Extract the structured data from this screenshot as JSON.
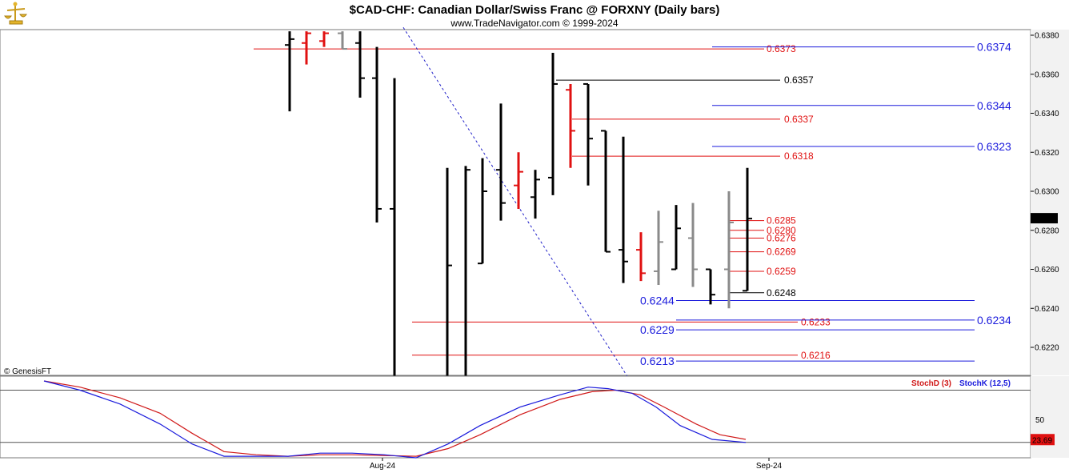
{
  "header": {
    "title": "$CAD-CHF:  Canadian Dollar/Swiss Franc @ FORXNY  (Daily bars)",
    "subtitle": "www.TradeNavigator.com © 1999-2024",
    "logo_icon": "gold-scale-logo-icon"
  },
  "watermark": "© GenesisFT",
  "chart_data": [
    {
      "type": "ohlc",
      "name": "price-panel",
      "ylim": [
        0.62045,
        0.63845
      ],
      "y_ticks": [
        "0.6380",
        "0.6360",
        "0.6340",
        "0.6320",
        "0.6300",
        "0.6280",
        "0.6260",
        "0.6240",
        "0.6220"
      ],
      "last_price": "0.6286",
      "bars": [
        {
          "x": 362,
          "o": 0.6375,
          "h": 0.6382,
          "l": 0.6341,
          "c": 0.6378,
          "color": "black"
        },
        {
          "x": 383,
          "o": 0.6376,
          "h": 0.6382,
          "l": 0.6365,
          "c": 0.6381,
          "color": "red"
        },
        {
          "x": 405,
          "o": 0.6377,
          "h": 0.6382,
          "l": 0.6374,
          "c": 0.6381,
          "color": "red"
        },
        {
          "x": 428,
          "o": 0.6381,
          "h": 0.6382,
          "l": 0.6373,
          "c": 0.6373,
          "color": "grey"
        },
        {
          "x": 450,
          "o": 0.6376,
          "h": 0.6382,
          "l": 0.6348,
          "c": 0.6358,
          "color": "black"
        },
        {
          "x": 471,
          "o": 0.6358,
          "h": 0.6374,
          "l": 0.6284,
          "c": 0.6291,
          "color": "black"
        },
        {
          "x": 493,
          "o": 0.6291,
          "h": 0.6358,
          "l": 0.62045,
          "c": 0.62045,
          "color": "black"
        },
        {
          "x": 559,
          "o": 0.62045,
          "h": 0.6312,
          "l": 0.62045,
          "c": 0.6262,
          "color": "black"
        },
        {
          "x": 582,
          "o": 0.62045,
          "h": 0.6313,
          "l": 0.62045,
          "c": 0.6311,
          "color": "black"
        },
        {
          "x": 603,
          "o": 0.6263,
          "h": 0.6317,
          "l": 0.6263,
          "c": 0.63,
          "color": "black"
        },
        {
          "x": 626,
          "o": 0.6311,
          "h": 0.6345,
          "l": 0.6285,
          "c": 0.6294,
          "color": "black"
        },
        {
          "x": 648,
          "o": 0.6303,
          "h": 0.632,
          "l": 0.6291,
          "c": 0.631,
          "color": "red"
        },
        {
          "x": 669,
          "o": 0.6297,
          "h": 0.6311,
          "l": 0.6286,
          "c": 0.6306,
          "color": "black"
        },
        {
          "x": 691,
          "o": 0.6307,
          "h": 0.6371,
          "l": 0.6298,
          "c": 0.6355,
          "color": "black"
        },
        {
          "x": 713,
          "o": 0.6352,
          "h": 0.6355,
          "l": 0.6312,
          "c": 0.6331,
          "color": "red"
        },
        {
          "x": 735,
          "o": 0.6355,
          "h": 0.6355,
          "l": 0.6303,
          "c": 0.6327,
          "color": "black"
        },
        {
          "x": 757,
          "o": 0.6331,
          "h": 0.6331,
          "l": 0.6269,
          "c": 0.6269,
          "color": "black"
        },
        {
          "x": 779,
          "o": 0.627,
          "h": 0.6328,
          "l": 0.6253,
          "c": 0.6264,
          "color": "black"
        },
        {
          "x": 801,
          "o": 0.627,
          "h": 0.6279,
          "l": 0.6254,
          "c": 0.6258,
          "color": "red"
        },
        {
          "x": 823,
          "o": 0.6259,
          "h": 0.629,
          "l": 0.6252,
          "c": 0.6274,
          "color": "grey"
        },
        {
          "x": 845,
          "o": 0.626,
          "h": 0.6293,
          "l": 0.626,
          "c": 0.6281,
          "color": "black"
        },
        {
          "x": 866,
          "o": 0.6276,
          "h": 0.6294,
          "l": 0.6251,
          "c": 0.626,
          "color": "grey"
        },
        {
          "x": 888,
          "o": 0.626,
          "h": 0.626,
          "l": 0.6242,
          "c": 0.6247,
          "color": "black"
        },
        {
          "x": 911,
          "o": 0.626,
          "h": 0.63,
          "l": 0.624,
          "c": 0.6284,
          "color": "grey"
        },
        {
          "x": 934,
          "o": 0.6249,
          "h": 0.6312,
          "l": 0.6249,
          "c": 0.6286,
          "color": "black"
        }
      ],
      "trendline": {
        "color": "#2020c8",
        "style": "dashed",
        "from": {
          "x": 504,
          "y": 0.6384
        },
        "to": {
          "x": 785,
          "y": 0.62045
        }
      },
      "levels": [
        {
          "value": 0.6373,
          "label": "0.6373",
          "color": "red",
          "x1": 317,
          "x2": 955,
          "text_x": 958
        },
        {
          "value": 0.6357,
          "label": "0.6357",
          "color": "black",
          "x1": 695,
          "x2": 975,
          "text_x": 980
        },
        {
          "value": 0.6337,
          "label": "0.6337",
          "color": "red",
          "x1": 715,
          "x2": 975,
          "text_x": 980
        },
        {
          "value": 0.6318,
          "label": "0.6318",
          "color": "red",
          "x1": 715,
          "x2": 975,
          "text_x": 980
        },
        {
          "value": 0.6285,
          "label": "0.6285",
          "color": "red",
          "x1": 912,
          "x2": 955,
          "text_x": 958
        },
        {
          "value": 0.628,
          "label": "0.6280",
          "color": "red",
          "x1": 912,
          "x2": 955,
          "text_x": 958
        },
        {
          "value": 0.6276,
          "label": "0.6276",
          "color": "red",
          "x1": 912,
          "x2": 955,
          "text_x": 958
        },
        {
          "value": 0.6269,
          "label": "0.6269",
          "color": "red",
          "x1": 912,
          "x2": 955,
          "text_x": 958
        },
        {
          "value": 0.6259,
          "label": "0.6259",
          "color": "red",
          "x1": 912,
          "x2": 955,
          "text_x": 958
        },
        {
          "value": 0.6248,
          "label": "0.6248",
          "color": "black",
          "x1": 912,
          "x2": 955,
          "text_x": 958
        },
        {
          "value": 0.6233,
          "label": "0.6233",
          "color": "red",
          "x1": 515,
          "x2": 997,
          "text_x": 1001
        },
        {
          "value": 0.6216,
          "label": "0.6216",
          "color": "red",
          "x1": 515,
          "x2": 997,
          "text_x": 1001
        }
      ],
      "projections": [
        {
          "value": 0.6374,
          "label": "0.6374",
          "x1": 890,
          "x2": 1218,
          "label_side": "right"
        },
        {
          "value": 0.6344,
          "label": "0.6344",
          "x1": 890,
          "x2": 1218,
          "label_side": "right"
        },
        {
          "value": 0.6323,
          "label": "0.6323",
          "x1": 890,
          "x2": 1218,
          "label_side": "right"
        },
        {
          "value": 0.6234,
          "label": "0.6234",
          "x1": 845,
          "x2": 1218,
          "label_side": "right"
        },
        {
          "value": 0.6244,
          "label": "0.6244",
          "x1": 845,
          "x2": 1218,
          "label_side": "left"
        },
        {
          "value": 0.6229,
          "label": "0.6229",
          "x1": 845,
          "x2": 1218,
          "label_side": "left"
        },
        {
          "value": 0.6213,
          "label": "0.6213",
          "x1": 845,
          "x2": 1218,
          "label_side": "left"
        }
      ]
    },
    {
      "type": "line",
      "name": "stochastic-panel",
      "ylim": [
        0,
        100
      ],
      "hlines": [
        88,
        20
      ],
      "y_ticks": [
        "50"
      ],
      "last_value": "23.69",
      "legend": [
        {
          "label": "StochD (3)",
          "color": "#d01818"
        },
        {
          "label": "StochK (12,5)",
          "color": "#1a1adc"
        }
      ],
      "x_labels": [
        {
          "label": "Aug-24",
          "x": 478
        },
        {
          "label": "Sep-24",
          "x": 961
        }
      ],
      "series": [
        {
          "name": "StochD (3)",
          "color": "#d01818",
          "points": [
            [
              55,
              100
            ],
            [
              100,
              92
            ],
            [
              150,
              78
            ],
            [
              200,
              58
            ],
            [
              240,
              32
            ],
            [
              280,
              8
            ],
            [
              320,
              4
            ],
            [
              360,
              2
            ],
            [
              400,
              4
            ],
            [
              440,
              4
            ],
            [
              480,
              3
            ],
            [
              520,
              2
            ],
            [
              560,
              12
            ],
            [
              600,
              30
            ],
            [
              650,
              56
            ],
            [
              700,
              76
            ],
            [
              740,
              86
            ],
            [
              770,
              88
            ],
            [
              800,
              82
            ],
            [
              830,
              66
            ],
            [
              870,
              44
            ],
            [
              900,
              30
            ],
            [
              932,
              24
            ]
          ]
        },
        {
          "name": "StochK (12,5)",
          "color": "#1a1adc",
          "points": [
            [
              55,
              100
            ],
            [
              100,
              88
            ],
            [
              150,
              70
            ],
            [
              200,
              44
            ],
            [
              240,
              18
            ],
            [
              280,
              2
            ],
            [
              320,
              2
            ],
            [
              360,
              2
            ],
            [
              400,
              6
            ],
            [
              440,
              6
            ],
            [
              480,
              4
            ],
            [
              520,
              0
            ],
            [
              560,
              18
            ],
            [
              600,
              42
            ],
            [
              650,
              66
            ],
            [
              700,
              82
            ],
            [
              735,
              92
            ],
            [
              760,
              90
            ],
            [
              790,
              84
            ],
            [
              820,
              66
            ],
            [
              850,
              42
            ],
            [
              890,
              24
            ],
            [
              932,
              20
            ]
          ]
        }
      ]
    }
  ]
}
